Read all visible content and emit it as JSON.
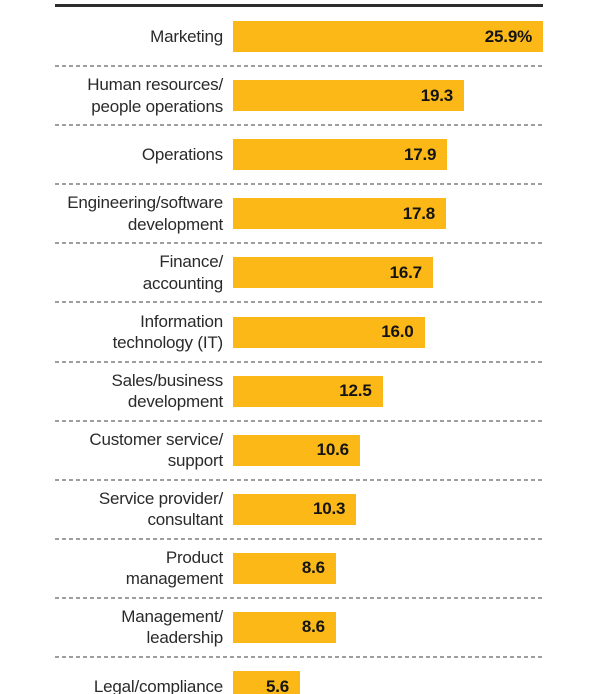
{
  "chart_data": {
    "type": "bar",
    "orientation": "horizontal",
    "title": "",
    "xlabel": "",
    "ylabel": "",
    "unit": "%",
    "xlim": [
      0,
      25.9
    ],
    "legend": "none",
    "grid": "dashed-row-separators",
    "categories": [
      "Marketing",
      "Human resources/people operations",
      "Operations",
      "Engineering/software development",
      "Finance/accounting",
      "Information technology (IT)",
      "Sales/business development",
      "Customer service/support",
      "Service provider/consultant",
      "Product management",
      "Management/leadership",
      "Legal/compliance"
    ],
    "categories_wrapped": [
      [
        "Marketing"
      ],
      [
        "Human resources/",
        "people operations"
      ],
      [
        "Operations"
      ],
      [
        "Engineering/software",
        "development"
      ],
      [
        "Finance/",
        "accounting"
      ],
      [
        "Information",
        "technology (IT)"
      ],
      [
        "Sales/business",
        "development"
      ],
      [
        "Customer service/",
        "support"
      ],
      [
        "Service provider/",
        "consultant"
      ],
      [
        "Product",
        "management"
      ],
      [
        "Management/",
        "leadership"
      ],
      [
        "Legal/compliance"
      ]
    ],
    "values": [
      25.9,
      19.3,
      17.9,
      17.8,
      16.7,
      16.0,
      12.5,
      10.6,
      10.3,
      8.6,
      8.6,
      5.6
    ],
    "value_labels": [
      "25.9%",
      "19.3",
      "17.9",
      "17.8",
      "16.7",
      "16.0",
      "12.5",
      "10.6",
      "10.3",
      "8.6",
      "8.6",
      "5.6"
    ]
  },
  "style": {
    "bar_color": "#FBB817",
    "rule_color": "#2D2D2D",
    "separator_color": "#9E9E9E",
    "label_color": "#2A2A2A",
    "value_color": "#141414",
    "background": "#FFFFFF"
  }
}
